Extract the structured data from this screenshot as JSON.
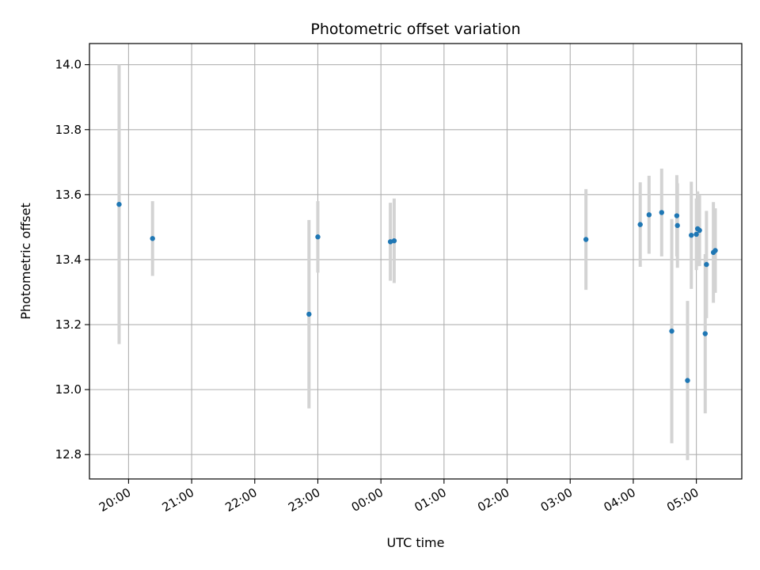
{
  "chart_data": {
    "type": "scatter",
    "title": "Photometric offset variation",
    "xlabel": "UTC time",
    "ylabel": "Photometric offset",
    "x_unit": "hours since 00:00 UTC",
    "xlim": [
      -4.62,
      5.72
    ],
    "ylim": [
      12.725,
      14.065
    ],
    "grid": true,
    "x_ticks": [
      {
        "value": -4,
        "label": "20:00"
      },
      {
        "value": -3,
        "label": "21:00"
      },
      {
        "value": -2,
        "label": "22:00"
      },
      {
        "value": -1,
        "label": "23:00"
      },
      {
        "value": 0,
        "label": "00:00"
      },
      {
        "value": 1,
        "label": "01:00"
      },
      {
        "value": 2,
        "label": "02:00"
      },
      {
        "value": 3,
        "label": "03:00"
      },
      {
        "value": 4,
        "label": "04:00"
      },
      {
        "value": 5,
        "label": "05:00"
      }
    ],
    "y_ticks": [
      {
        "value": 12.8,
        "label": "12.8"
      },
      {
        "value": 13.0,
        "label": "13.0"
      },
      {
        "value": 13.2,
        "label": "13.2"
      },
      {
        "value": 13.4,
        "label": "13.4"
      },
      {
        "value": 13.6,
        "label": "13.6"
      },
      {
        "value": 13.8,
        "label": "13.8"
      },
      {
        "value": 14.0,
        "label": "14.0"
      }
    ],
    "colors": {
      "marker": "#1f77b4",
      "errorbar": "#d3d3d3",
      "grid": "#b0b0b0"
    },
    "points": [
      {
        "x": -4.15,
        "y": 13.57,
        "err": 0.43
      },
      {
        "x": -3.62,
        "y": 13.465,
        "err": 0.115
      },
      {
        "x": -1.14,
        "y": 13.232,
        "err": 0.29
      },
      {
        "x": -1.0,
        "y": 13.47,
        "err": 0.11
      },
      {
        "x": 0.15,
        "y": 13.455,
        "err": 0.12
      },
      {
        "x": 0.21,
        "y": 13.458,
        "err": 0.13
      },
      {
        "x": 3.25,
        "y": 13.462,
        "err": 0.155
      },
      {
        "x": 4.11,
        "y": 13.508,
        "err": 0.13
      },
      {
        "x": 4.25,
        "y": 13.538,
        "err": 0.12
      },
      {
        "x": 4.45,
        "y": 13.545,
        "err": 0.135
      },
      {
        "x": 4.61,
        "y": 13.18,
        "err": 0.345
      },
      {
        "x": 4.69,
        "y": 13.535,
        "err": 0.125
      },
      {
        "x": 4.7,
        "y": 13.505,
        "err": 0.13
      },
      {
        "x": 4.86,
        "y": 13.028,
        "err": 0.245
      },
      {
        "x": 4.92,
        "y": 13.475,
        "err": 0.165
      },
      {
        "x": 5.0,
        "y": 13.478,
        "err": 0.11
      },
      {
        "x": 5.02,
        "y": 13.495,
        "err": 0.115
      },
      {
        "x": 5.05,
        "y": 13.49,
        "err": 0.11
      },
      {
        "x": 5.14,
        "y": 13.172,
        "err": 0.245
      },
      {
        "x": 5.16,
        "y": 13.385,
        "err": 0.165
      },
      {
        "x": 5.27,
        "y": 13.422,
        "err": 0.155
      },
      {
        "x": 5.3,
        "y": 13.428,
        "err": 0.13
      }
    ]
  }
}
